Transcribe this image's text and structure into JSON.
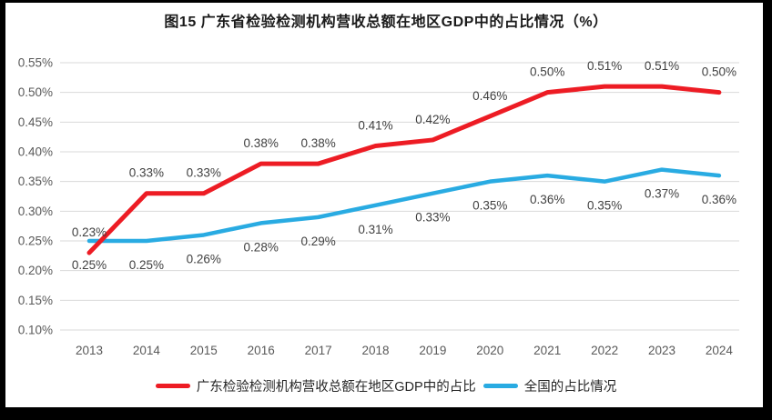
{
  "title": "图15  广东省检验检测机构营收总额在地区GDP中的占比情况（%）",
  "colors": {
    "frame": "#000000",
    "background": "#ffffff",
    "gridline": "#d9d9d9",
    "axis_text": "#595959",
    "data_label_text": "#404040",
    "title_text": "#1a1a1a",
    "guangdong_line": "#ed1c24",
    "national_line": "#29abe2"
  },
  "chart_data": {
    "type": "line",
    "title": "图15  广东省检验检测机构营收总额在地区GDP中的占比情况（%）",
    "x": [
      "2013",
      "2014",
      "2015",
      "2016",
      "2017",
      "2018",
      "2019",
      "2020",
      "2021",
      "2022",
      "2023",
      "2024"
    ],
    "y_axis": {
      "min": 0.1,
      "max": 0.55,
      "step": 0.05,
      "unit": "%",
      "ticks": [
        "0.55%",
        "0.50%",
        "0.45%",
        "0.40%",
        "0.35%",
        "0.30%",
        "0.25%",
        "0.20%",
        "0.15%",
        "0.10%"
      ]
    },
    "grid": true,
    "legend_position": "bottom",
    "series": [
      {
        "name": "广东检验检测机构营收总额在地区GDP中的占比",
        "color": "#ed1c24",
        "values": [
          0.23,
          0.33,
          0.33,
          0.38,
          0.38,
          0.41,
          0.42,
          0.46,
          0.5,
          0.51,
          0.51,
          0.5
        ],
        "labels": [
          "0.23%",
          "0.33%",
          "0.33%",
          "0.38%",
          "0.38%",
          "0.41%",
          "0.42%",
          "0.46%",
          "0.50%",
          "0.51%",
          "0.51%",
          "0.50%"
        ]
      },
      {
        "name": "全国的占比情况",
        "color": "#29abe2",
        "values": [
          0.25,
          0.25,
          0.26,
          0.28,
          0.29,
          0.31,
          0.33,
          0.35,
          0.36,
          0.35,
          0.37,
          0.36
        ],
        "labels": [
          "0.25%",
          "0.25%",
          "0.26%",
          "0.28%",
          "0.29%",
          "0.31%",
          "0.33%",
          "0.35%",
          "0.36%",
          "0.35%",
          "0.37%",
          "0.36%"
        ]
      }
    ]
  }
}
